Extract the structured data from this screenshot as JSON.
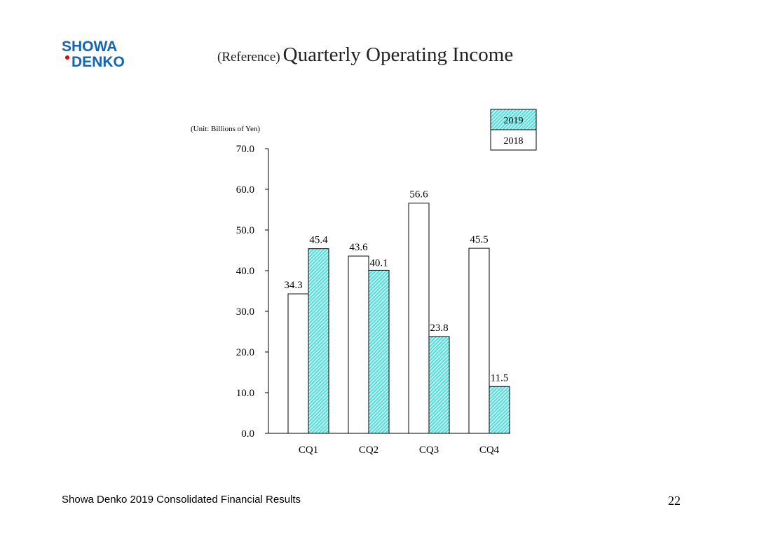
{
  "header": {
    "logo_line1": "SHOWA",
    "logo_line2": "DENKO",
    "title_prefix": "(Reference)",
    "title_main": "Quarterly Operating Income"
  },
  "chart_data": {
    "type": "bar",
    "unit_label": "(Unit: Billions of Yen)",
    "categories": [
      "CQ1",
      "CQ2",
      "CQ3",
      "CQ4"
    ],
    "series": [
      {
        "name": "2018",
        "values": [
          34.3,
          43.6,
          56.6,
          45.5
        ],
        "labels": [
          "34.3",
          "43.6",
          "56.6",
          "45.5"
        ],
        "color": "#ffffff",
        "pattern": "none"
      },
      {
        "name": "2019",
        "values": [
          45.4,
          40.1,
          23.8,
          11.5
        ],
        "labels": [
          "45.4",
          "40.1",
          "23.8",
          "11.5"
        ],
        "color": "#4fe0e0",
        "pattern": "diagonal-hatch"
      }
    ],
    "ylim": [
      0,
      70
    ],
    "yticks": [
      0,
      10,
      20,
      30,
      40,
      50,
      60,
      70
    ],
    "ytick_labels": [
      "0.0",
      "10.0",
      "20.0",
      "30.0",
      "40.0",
      "50.0",
      "60.0",
      "70.0"
    ],
    "legend": {
      "position": "top-right",
      "order": [
        "2019",
        "2018"
      ]
    },
    "grid": false
  },
  "footer": {
    "text": "Showa Denko 2019 Consolidated Financial Results",
    "page_number": "22"
  },
  "colors": {
    "logo_blue": "#1565b0",
    "logo_dot": "#e00012",
    "hatch": "#4fe0e0"
  }
}
